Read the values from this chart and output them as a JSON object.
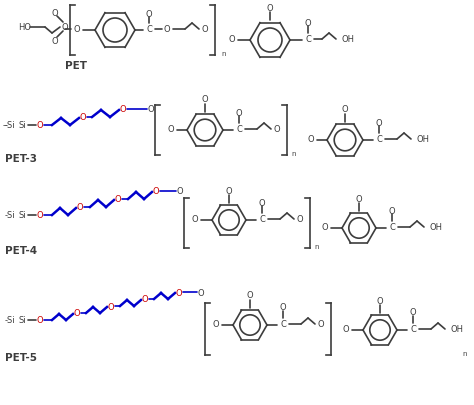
{
  "title": "",
  "bg_color": "#ffffff",
  "line_color": "#3d3d3d",
  "blue_color": "#0000cc",
  "red_color": "#cc0000",
  "label_PET": "PET",
  "label_PET3": "PET-3",
  "label_PET4": "PET-4",
  "label_PET5": "PET-5",
  "fig_width": 4.74,
  "fig_height": 4.06,
  "dpi": 100
}
